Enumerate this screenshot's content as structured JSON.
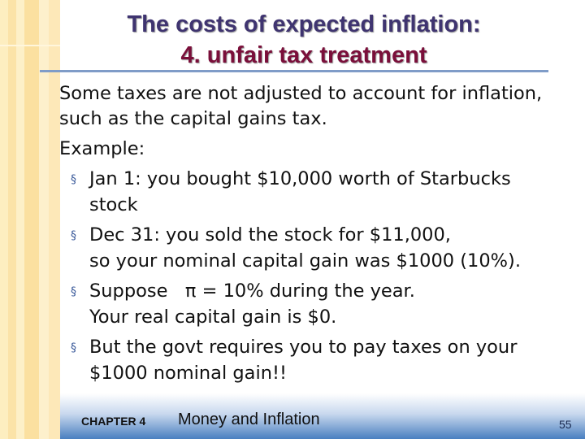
{
  "slide": {
    "title_line1": "The costs of expected inflation:",
    "title_line2": "4. unfair tax treatment",
    "intro": [
      "Some taxes are not adjusted to account for inflation,",
      "such as the capital gains tax."
    ],
    "example_label": "Example:",
    "bullets": [
      {
        "lines": [
          "Jan 1:  you bought $10,000 worth of Starbucks",
          "stock"
        ]
      },
      {
        "lines": [
          "Dec 31:  you sold the stock for $11,000,",
          "so your nominal capital gain was $1000 (10%)."
        ]
      },
      {
        "lines": [
          "Suppose   π = 10% during the year.",
          "Your real capital gain is $0."
        ]
      },
      {
        "lines": [
          "But the govt requires you to pay taxes on your",
          "$1000 nominal gain!!"
        ]
      }
    ],
    "bullet_symbol": "§"
  },
  "footer": {
    "chapter": "CHAPTER 4",
    "title": "Money and Inflation",
    "page": "55"
  },
  "colors": {
    "title": "#3f3470",
    "subtitle": "#7a0f3a",
    "rule": "#7f9cc8",
    "footer_blue": "#4a7fc0"
  }
}
